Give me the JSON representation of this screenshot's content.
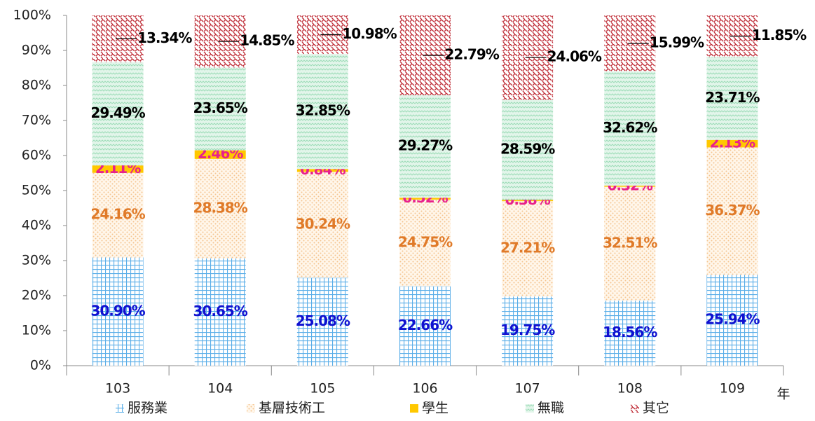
{
  "chart_data": {
    "type": "stacked_bar",
    "categories": [
      "103",
      "104",
      "105",
      "106",
      "107",
      "108",
      "109"
    ],
    "x_unit": "年",
    "ylim": [
      0,
      100
    ],
    "yticks": [
      {
        "value": 0,
        "label": "0%"
      },
      {
        "value": 10,
        "label": "10%"
      },
      {
        "value": 20,
        "label": "20%"
      },
      {
        "value": 30,
        "label": "30%"
      },
      {
        "value": 40,
        "label": "40%"
      },
      {
        "value": 50,
        "label": "50%"
      },
      {
        "value": 60,
        "label": "60%"
      },
      {
        "value": 70,
        "label": "70%"
      },
      {
        "value": 80,
        "label": "80%"
      },
      {
        "value": 90,
        "label": "90%"
      },
      {
        "value": 100,
        "label": "100%"
      }
    ],
    "legend": "bottom",
    "series": [
      {
        "name": "服務業",
        "color": "#5aaee8",
        "label_color": "#1010d0",
        "values": [
          30.9,
          30.65,
          25.08,
          22.66,
          19.75,
          18.56,
          25.94
        ],
        "value_labels": [
          "30.90%",
          "30.65%",
          "25.08%",
          "22.66%",
          "19.75%",
          "18.56%",
          "25.94%"
        ]
      },
      {
        "name": "基層技術工",
        "color": "#f5c48e",
        "label_color": "#e07a28",
        "values": [
          24.16,
          28.38,
          30.24,
          24.75,
          27.21,
          32.51,
          36.37
        ],
        "value_labels": [
          "24.16%",
          "28.38%",
          "30.24%",
          "24.75%",
          "27.21%",
          "32.51%",
          "36.37%"
        ]
      },
      {
        "name": "學生",
        "color": "#ffc800",
        "label_color": "#e8208c",
        "values": [
          2.11,
          2.46,
          0.84,
          0.52,
          0.38,
          0.32,
          2.13
        ],
        "value_labels": [
          "2.11%",
          "2.46%",
          "0.84%",
          "0.52%",
          "0.38%",
          "0.32%",
          "2.13%"
        ]
      },
      {
        "name": "無職",
        "color": "#9edcb8",
        "label_color": "#000000",
        "values": [
          29.49,
          23.65,
          32.85,
          29.27,
          28.59,
          32.62,
          23.71
        ],
        "value_labels": [
          "29.49%",
          "23.65%",
          "32.85%",
          "29.27%",
          "28.59%",
          "32.62%",
          "23.71%"
        ]
      },
      {
        "name": "其它",
        "color": "#c0303a",
        "label_color": "#000000",
        "values": [
          13.34,
          14.85,
          10.98,
          22.79,
          24.06,
          15.99,
          11.85
        ],
        "value_labels": [
          "13.34%",
          "14.85%",
          "10.98%",
          "22.79%",
          "24.06%",
          "15.99%",
          "11.85%"
        ]
      }
    ]
  }
}
